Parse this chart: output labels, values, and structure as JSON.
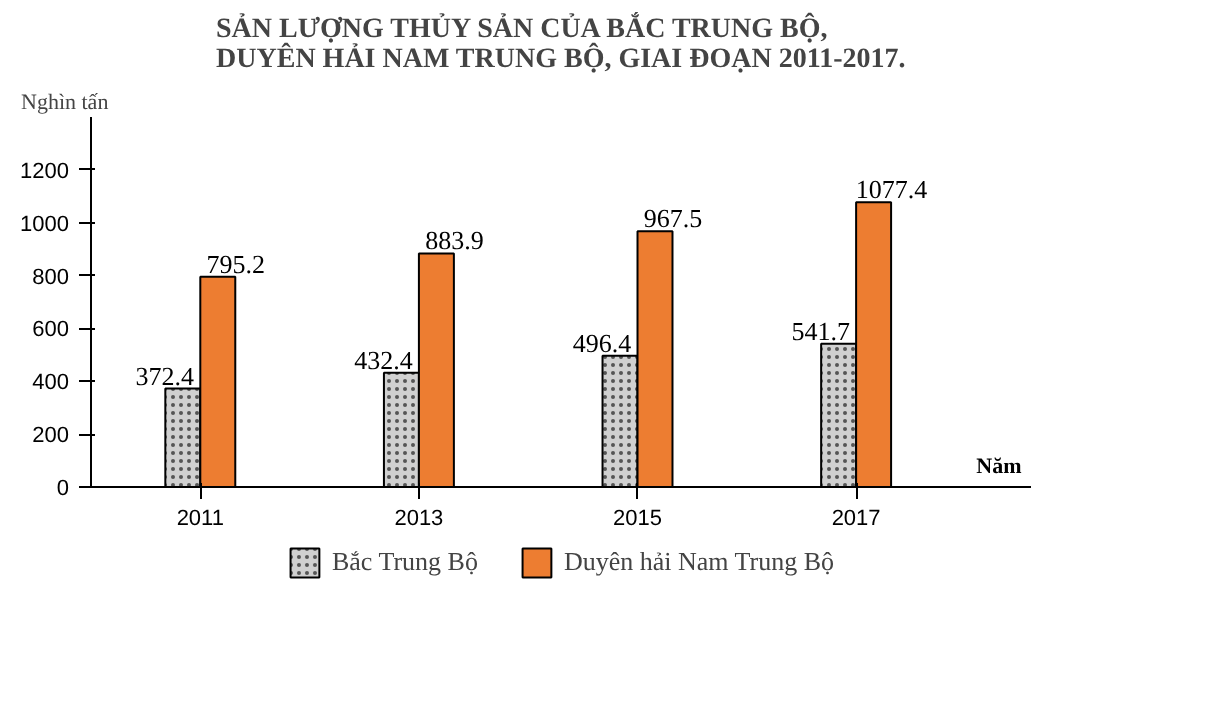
{
  "chart_data": {
    "type": "bar",
    "title": "SẢN LƯỢNG THỦY SẢN CỦA BẮC TRUNG BỘ,\nDUYÊN HẢI NAM TRUNG BỘ, GIAI ĐOẠN 2011-2017.",
    "ylabel": "Nghìn tấn",
    "xlabel": "Năm",
    "categories": [
      "2011",
      "2013",
      "2015",
      "2017"
    ],
    "series": [
      {
        "name": "Bắc Trung Bộ",
        "color": "#d0d0d0",
        "values": [
          372.4,
          432.4,
          496.4,
          541.7
        ]
      },
      {
        "name": "Duyên hải Nam Trung Bộ",
        "color": "#ed7d31",
        "values": [
          795.2,
          883.9,
          967.5,
          1077.4
        ]
      }
    ],
    "ylim": [
      0,
      1400
    ],
    "yticks": [
      0,
      200,
      400,
      600,
      800,
      1000,
      1200
    ],
    "data_labels": true,
    "grid": false,
    "legend": "bottom"
  }
}
